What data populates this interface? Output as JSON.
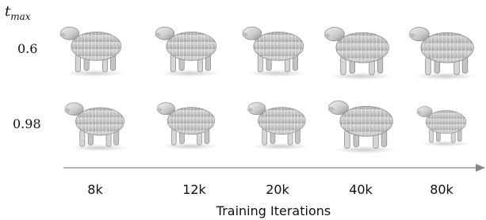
{
  "row_header": {
    "symbol": "t",
    "subscript": "max"
  },
  "rows": [
    {
      "label": "0.6"
    },
    {
      "label": "0.98"
    }
  ],
  "columns": [
    "8k",
    "12k",
    "20k",
    "40k",
    "80k"
  ],
  "axis_label": "Training Iterations"
}
